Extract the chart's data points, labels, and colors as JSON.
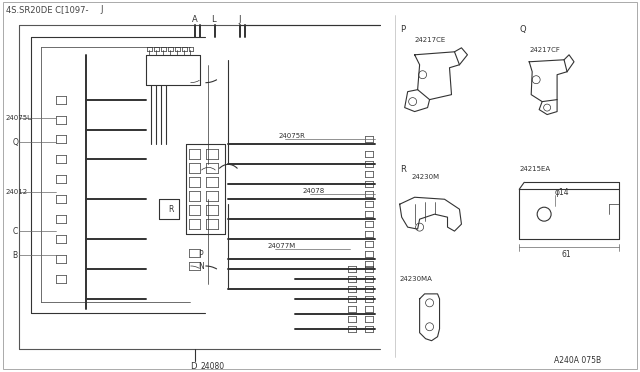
{
  "bg_color": "#ffffff",
  "line_color": "#333333",
  "title1": "4S.SR20DE C[1097-",
  "title2": "J",
  "footer": "A240A 075B",
  "border_color": "#888888"
}
